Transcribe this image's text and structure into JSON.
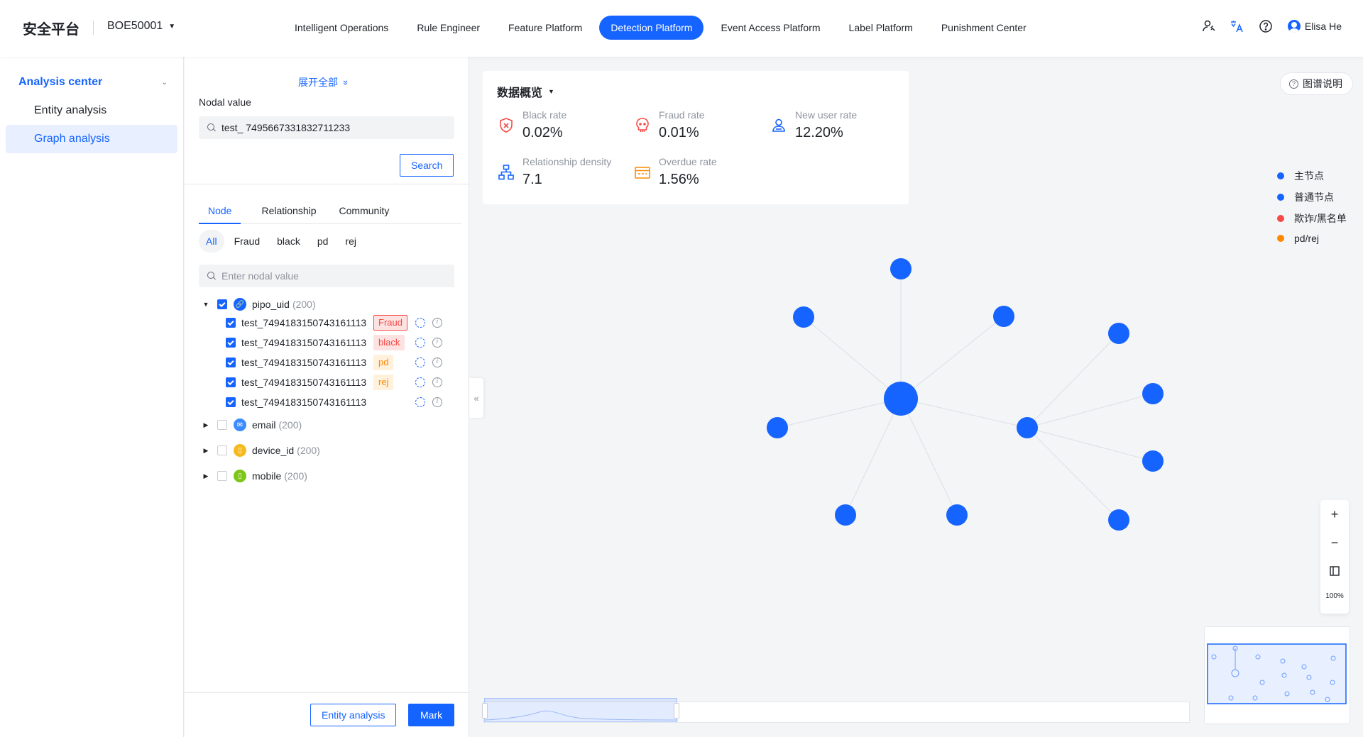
{
  "brand": "安全平台",
  "workspace": "BOE50001",
  "nav": [
    {
      "label": "Intelligent Operations",
      "active": false
    },
    {
      "label": "Rule Engineer",
      "active": false
    },
    {
      "label": "Feature Platform",
      "active": false
    },
    {
      "label": "Detection Platform",
      "active": true
    },
    {
      "label": "Event Access Platform",
      "active": false
    },
    {
      "label": "Label Platform",
      "active": false
    },
    {
      "label": "Punishment Center",
      "active": false
    }
  ],
  "user": {
    "name": "Elisa He"
  },
  "top_icons": [
    "user-permission-icon",
    "translate-icon",
    "help-icon"
  ],
  "sidebar": {
    "group": "Analysis center",
    "items": [
      {
        "label": "Entity analysis",
        "active": false
      },
      {
        "label": "Graph analysis",
        "active": true
      }
    ]
  },
  "query": {
    "expand_all": "展开全部",
    "nodal_label": "Nodal value",
    "nodal_value": "test_ 7495667331832711233",
    "search_button": "Search"
  },
  "tabs": [
    "Node",
    "Relationship",
    "Community"
  ],
  "filters": [
    "All",
    "Fraud",
    "black",
    "pd",
    "rej"
  ],
  "node_search_placeholder": "Enter nodal value",
  "tree": {
    "groups": [
      {
        "name": "pipo_uid",
        "count": "(200)",
        "expanded": true,
        "checked": true,
        "icon": "link-icon",
        "color": "#1664ff"
      },
      {
        "name": "email",
        "count": "(200)",
        "expanded": false,
        "checked": false,
        "icon": "mail-icon",
        "color": "#3c8cff"
      },
      {
        "name": "device_id",
        "count": "(200)",
        "expanded": false,
        "checked": false,
        "icon": "device-icon",
        "color": "#f7ba1e"
      },
      {
        "name": "mobile",
        "count": "(200)",
        "expanded": false,
        "checked": false,
        "icon": "phone-icon",
        "color": "#7bc616"
      }
    ],
    "leaves": [
      {
        "label": "test_7494183150743161113",
        "tag": "Fraud",
        "tag_class": "fraud"
      },
      {
        "label": "test_7494183150743161113",
        "tag": "black",
        "tag_class": "black"
      },
      {
        "label": "test_7494183150743161113",
        "tag": "pd",
        "tag_class": "pd"
      },
      {
        "label": "test_7494183150743161113",
        "tag": "rej",
        "tag_class": "rej"
      },
      {
        "label": "test_7494183150743161113",
        "tag": "",
        "tag_class": ""
      }
    ]
  },
  "footer": {
    "entity_button": "Entity analysis",
    "mark_button": "Mark"
  },
  "overview": {
    "title": "数据概览",
    "stats": [
      {
        "label": "Black rate",
        "value": "0.02%",
        "icon": "shield-x-icon",
        "color": "#f54a45"
      },
      {
        "label": "Fraud rate",
        "value": "0.01%",
        "icon": "skull-icon",
        "color": "#f54a45"
      },
      {
        "label": "New user rate",
        "value": "12.20%",
        "icon": "new-user-icon",
        "color": "#1664ff"
      },
      {
        "label": "Relationship density",
        "value": "7.1",
        "icon": "hierarchy-icon",
        "color": "#1664ff"
      },
      {
        "label": "Overdue rate",
        "value": "1.56%",
        "icon": "card-icon",
        "color": "#ff8800"
      }
    ]
  },
  "legend_button": "图谱说明",
  "legend": [
    {
      "label": "主节点",
      "color": "#1664ff"
    },
    {
      "label": "普通节点",
      "color": "#1664ff"
    },
    {
      "label": "欺诈/黑名单",
      "color": "#f54a45"
    },
    {
      "label": "pd/rej",
      "color": "#ff8800"
    }
  ],
  "zoom": {
    "level": "100%"
  },
  "colors": {
    "accent": "#1664ff",
    "node": "#1664ff",
    "edge": "#dcdfe4"
  }
}
